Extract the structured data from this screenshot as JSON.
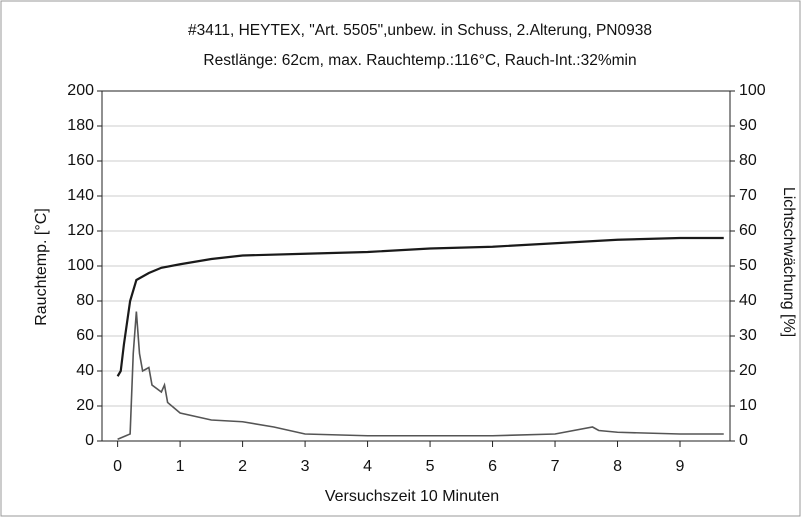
{
  "chart_data": {
    "type": "line",
    "title": "#3411, HEYTEX, \"Art. 5505\",unbew. in Schuss, 2.Alterung, PN0938",
    "subtitle": "Restlänge: 62cm, max. Rauchtemp.:116°C, Rauch-Int.:32%min",
    "x_label": "Versuchszeit 10 Minuten",
    "y_label": "Rauchtemp. [°C]",
    "y2_label": "Lichtschwächung [%]",
    "xlim": [
      -0.25,
      9.8
    ],
    "xticks": [
      0,
      1,
      2,
      3,
      4,
      5,
      6,
      7,
      8,
      9
    ],
    "ylim": [
      0,
      200
    ],
    "yticks": [
      0,
      20,
      40,
      60,
      80,
      100,
      120,
      140,
      160,
      180,
      200
    ],
    "y2lim": [
      0,
      100
    ],
    "y2ticks": [
      0,
      10,
      20,
      30,
      40,
      50,
      60,
      70,
      80,
      90,
      100
    ],
    "grid": true,
    "series": [
      {
        "name": "Rauchtemp.",
        "color": "#1a1a1a",
        "x": [
          0,
          0.05,
          0.1,
          0.2,
          0.3,
          0.5,
          0.7,
          1,
          1.5,
          2,
          3,
          4,
          5,
          6,
          7,
          8,
          9,
          9.7
        ],
        "values": [
          37,
          40,
          55,
          80,
          92,
          96,
          99,
          101,
          104,
          106,
          107,
          108,
          110,
          111,
          113,
          115,
          116,
          116
        ]
      },
      {
        "name": "Lichtschwächung",
        "color": "#555555",
        "axis": "y2",
        "x": [
          0,
          0.2,
          0.25,
          0.3,
          0.35,
          0.4,
          0.5,
          0.55,
          0.7,
          0.75,
          0.8,
          1,
          1.5,
          2,
          2.5,
          3,
          4,
          5,
          6,
          7,
          7.6,
          7.7,
          8,
          9,
          9.7
        ],
        "values": [
          0.5,
          2,
          25,
          37,
          25,
          20,
          21,
          16,
          14,
          16,
          11,
          8,
          6,
          5.5,
          4,
          2,
          1.5,
          1.5,
          1.5,
          2,
          4,
          3,
          2.5,
          2,
          2
        ]
      }
    ]
  }
}
